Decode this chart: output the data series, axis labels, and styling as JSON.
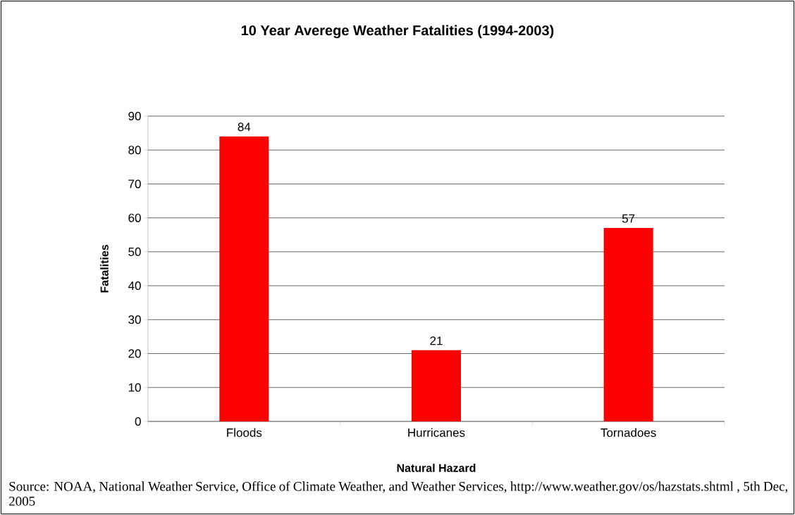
{
  "chart_data": {
    "type": "bar",
    "title": "10 Year Averege Weather Fatalities (1994-2003)",
    "xlabel": "Natural Hazard",
    "ylabel": "Fatalities",
    "categories": [
      "Floods",
      "Hurricanes",
      "Tornadoes"
    ],
    "values": [
      84,
      21,
      57
    ],
    "color": "#ff0000",
    "ylim": [
      0,
      90
    ],
    "yticks": [
      0,
      10,
      20,
      30,
      40,
      50,
      60,
      70,
      80,
      90
    ],
    "grid": "y",
    "data_labels": true,
    "annotations": [
      "Source: NOAA, National Weather Service, Office of Climate Weather, and Weather Services, http://www.weather.gov/os/hazstats.shtml , 5th Dec, 2005"
    ]
  }
}
